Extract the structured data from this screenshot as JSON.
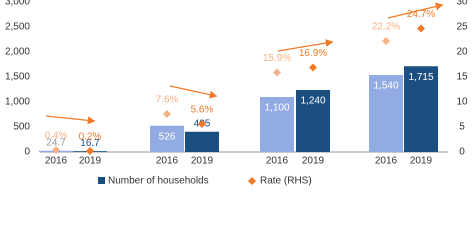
{
  "chart_data": {
    "type": "bar_diamond",
    "categories": [
      "2016",
      "2019",
      "2016",
      "2019",
      "2016",
      "2019",
      "2016",
      "2019"
    ],
    "series": [
      {
        "name": "Number of households",
        "color": "#1b4f80",
        "point_colors": [
          "#93abe3",
          "#1b4f80",
          "#93abe3",
          "#1b4f80",
          "#93abe3",
          "#1b4f80",
          "#93abe3",
          "#1b4f80"
        ],
        "values": [
          24.7,
          16.7,
          526,
          405,
          1100,
          1240,
          1540,
          1715
        ],
        "value_labels": [
          "24.7",
          "16.7",
          "526",
          "405",
          "1,100",
          "1,240",
          "1,540",
          "1,715"
        ]
      },
      {
        "name": "Rate (RHS)",
        "color": "#f07a28",
        "axis": "y2",
        "point_colors": [
          "#f7b184",
          "#f07a28",
          "#f7b184",
          "#f07a28",
          "#f7b184",
          "#f07a28",
          "#f7b184",
          "#f07a28"
        ],
        "values": [
          0.4,
          0.2,
          7.6,
          5.6,
          15.9,
          16.9,
          22.2,
          24.7
        ],
        "value_labels": [
          "0.4%",
          "0.2%",
          "7.6%",
          "5.6%",
          "15.9%",
          "16.9%",
          "22.2%",
          "24.7%"
        ]
      }
    ],
    "ylim": [
      0,
      3000
    ],
    "yticks": [
      0,
      500,
      {
        "value": 1000,
        "label": "1,000"
      },
      {
        "value": 1500,
        "label": "1,500"
      },
      {
        "value": 2000,
        "label": "2,000"
      },
      {
        "value": 2500,
        "label": "2,500"
      },
      {
        "value": 3000,
        "label": "3,000"
      }
    ],
    "y2lim": [
      0,
      30
    ],
    "y2ticks": [
      0,
      5,
      10,
      15,
      20,
      25,
      30
    ]
  }
}
